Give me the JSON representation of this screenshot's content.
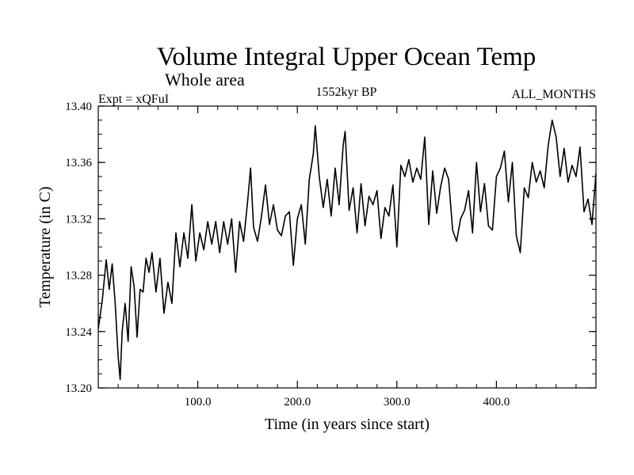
{
  "chart_data": {
    "type": "line",
    "title": "Volume Integral Upper Ocean Temp",
    "subtitle": "Whole area",
    "left_label": "Expt = xQFuI",
    "center_label": "1552kyr BP",
    "right_label": "ALL_MONTHS",
    "xlabel": "Time (in years since start)",
    "ylabel": "Temperature (in C)",
    "xlim": [
      0,
      500
    ],
    "ylim": [
      13.2,
      13.4
    ],
    "x_ticks": [
      100,
      200,
      300,
      400
    ],
    "x_tick_labels": [
      "100.0",
      "200.0",
      "300.0",
      "400.0"
    ],
    "y_ticks": [
      13.2,
      13.24,
      13.28,
      13.32,
      13.36,
      13.4
    ],
    "y_tick_labels": [
      "13.20",
      "13.24",
      "13.28",
      "13.32",
      "13.36",
      "13.40"
    ],
    "line_color": "#000000",
    "series": [
      {
        "name": "Temperature",
        "x": [
          0,
          4,
          8,
          11,
          14,
          17,
          20,
          22,
          24,
          27,
          30,
          33,
          36,
          39,
          42,
          45,
          48,
          51,
          54,
          58,
          62,
          66,
          70,
          74,
          78,
          82,
          86,
          90,
          94,
          98,
          102,
          106,
          110,
          114,
          118,
          122,
          126,
          130,
          134,
          138,
          142,
          146,
          150,
          153,
          156,
          160,
          164,
          168,
          172,
          176,
          180,
          184,
          188,
          192,
          196,
          200,
          204,
          208,
          212,
          216,
          218,
          222,
          226,
          230,
          234,
          238,
          242,
          246,
          248,
          252,
          256,
          260,
          264,
          268,
          272,
          276,
          280,
          284,
          288,
          292,
          296,
          300,
          304,
          308,
          312,
          316,
          320,
          324,
          328,
          332,
          336,
          340,
          344,
          348,
          352,
          356,
          360,
          364,
          368,
          372,
          376,
          380,
          384,
          388,
          392,
          396,
          400,
          404,
          408,
          412,
          416,
          420,
          424,
          428,
          432,
          436,
          440,
          444,
          448,
          452,
          456,
          460,
          464,
          468,
          472,
          476,
          480,
          484,
          488,
          492,
          496,
          500
        ],
        "values": [
          13.242,
          13.262,
          13.291,
          13.27,
          13.288,
          13.26,
          13.222,
          13.206,
          13.24,
          13.26,
          13.233,
          13.286,
          13.272,
          13.236,
          13.27,
          13.268,
          13.292,
          13.282,
          13.296,
          13.268,
          13.292,
          13.253,
          13.275,
          13.26,
          13.31,
          13.286,
          13.31,
          13.292,
          13.33,
          13.29,
          13.31,
          13.298,
          13.318,
          13.302,
          13.318,
          13.296,
          13.318,
          13.302,
          13.32,
          13.282,
          13.318,
          13.304,
          13.332,
          13.356,
          13.314,
          13.304,
          13.322,
          13.344,
          13.316,
          13.33,
          13.312,
          13.308,
          13.322,
          13.325,
          13.287,
          13.32,
          13.33,
          13.302,
          13.348,
          13.366,
          13.386,
          13.35,
          13.328,
          13.348,
          13.322,
          13.356,
          13.33,
          13.372,
          13.382,
          13.326,
          13.342,
          13.31,
          13.345,
          13.315,
          13.336,
          13.33,
          13.34,
          13.306,
          13.328,
          13.322,
          13.344,
          13.3,
          13.358,
          13.35,
          13.362,
          13.346,
          13.356,
          13.348,
          13.378,
          13.316,
          13.354,
          13.324,
          13.343,
          13.356,
          13.348,
          13.312,
          13.304,
          13.32,
          13.326,
          13.34,
          13.31,
          13.36,
          13.325,
          13.345,
          13.315,
          13.312,
          13.35,
          13.356,
          13.368,
          13.332,
          13.36,
          13.308,
          13.296,
          13.342,
          13.335,
          13.36,
          13.346,
          13.354,
          13.342,
          13.372,
          13.39,
          13.378,
          13.35,
          13.37,
          13.346,
          13.358,
          13.35,
          13.371,
          13.325,
          13.334,
          13.316,
          13.352
        ]
      }
    ]
  }
}
